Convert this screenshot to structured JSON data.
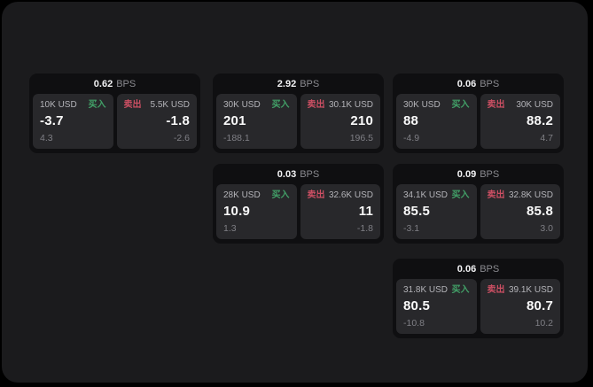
{
  "page": {
    "background": "#1b1b1d",
    "outer_background": "#000000"
  },
  "labels": {
    "bps_unit": "BPS",
    "buy": "买入",
    "sell": "卖出"
  },
  "colors": {
    "buy": "#42a168",
    "sell": "#cc4f63",
    "value_text": "#fafafa",
    "muted_text": "#7f7f85"
  },
  "cards": [
    {
      "col": 0,
      "row": 0,
      "bps": "0.62",
      "buy": {
        "size": "10K USD",
        "value": "-3.7",
        "sub": "4.3"
      },
      "sell": {
        "size": "5.5K USD",
        "value": "-1.8",
        "sub": "-2.6"
      }
    },
    {
      "col": 1,
      "row": 0,
      "bps": "2.92",
      "buy": {
        "size": "30K USD",
        "value": "201",
        "sub": "-188.1"
      },
      "sell": {
        "size": "30.1K USD",
        "value": "210",
        "sub": "196.5"
      }
    },
    {
      "col": 2,
      "row": 0,
      "bps": "0.06",
      "buy": {
        "size": "30K USD",
        "value": "88",
        "sub": "-4.9"
      },
      "sell": {
        "size": "30K USD",
        "value": "88.2",
        "sub": "4.7"
      }
    },
    {
      "col": 1,
      "row": 1,
      "bps": "0.03",
      "buy": {
        "size": "28K USD",
        "value": "10.9",
        "sub": "1.3"
      },
      "sell": {
        "size": "32.6K USD",
        "value": "11",
        "sub": "-1.8"
      }
    },
    {
      "col": 2,
      "row": 1,
      "bps": "0.09",
      "buy": {
        "size": "34.1K USD",
        "value": "85.5",
        "sub": "-3.1"
      },
      "sell": {
        "size": "32.8K USD",
        "value": "85.8",
        "sub": "3.0"
      }
    },
    {
      "col": 2,
      "row": 2,
      "bps": "0.06",
      "buy": {
        "size": "31.8K USD",
        "value": "80.5",
        "sub": "-10.8"
      },
      "sell": {
        "size": "39.1K USD",
        "value": "80.7",
        "sub": "10.2"
      }
    }
  ]
}
